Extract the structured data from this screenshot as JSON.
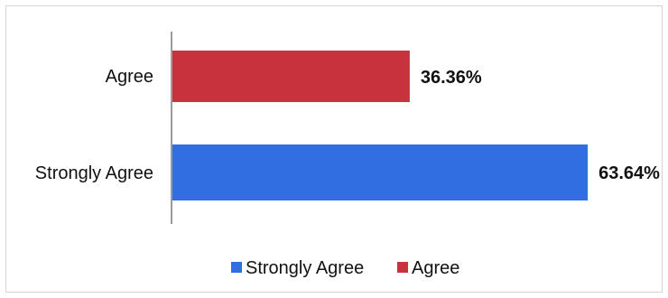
{
  "chart_data": {
    "type": "bar",
    "orientation": "horizontal",
    "categories": [
      "Agree",
      "Strongly Agree"
    ],
    "series": [
      {
        "name": "Agree",
        "values": [
          36.36,
          null
        ],
        "value_labels": [
          "36.36%",
          null
        ],
        "color": "#c8323c"
      },
      {
        "name": "Strongly Agree",
        "values": [
          null,
          63.64
        ],
        "value_labels": [
          null,
          "63.64%"
        ],
        "color": "#2f6fe0"
      }
    ],
    "title": "",
    "xlabel": "",
    "ylabel": "",
    "xlim": [
      0,
      100
    ],
    "grid": false,
    "legend": {
      "position": "bottom",
      "items": [
        {
          "label": "Strongly Agree",
          "color": "#2f6fe0"
        },
        {
          "label": "Agree",
          "color": "#c8323c"
        }
      ]
    }
  }
}
